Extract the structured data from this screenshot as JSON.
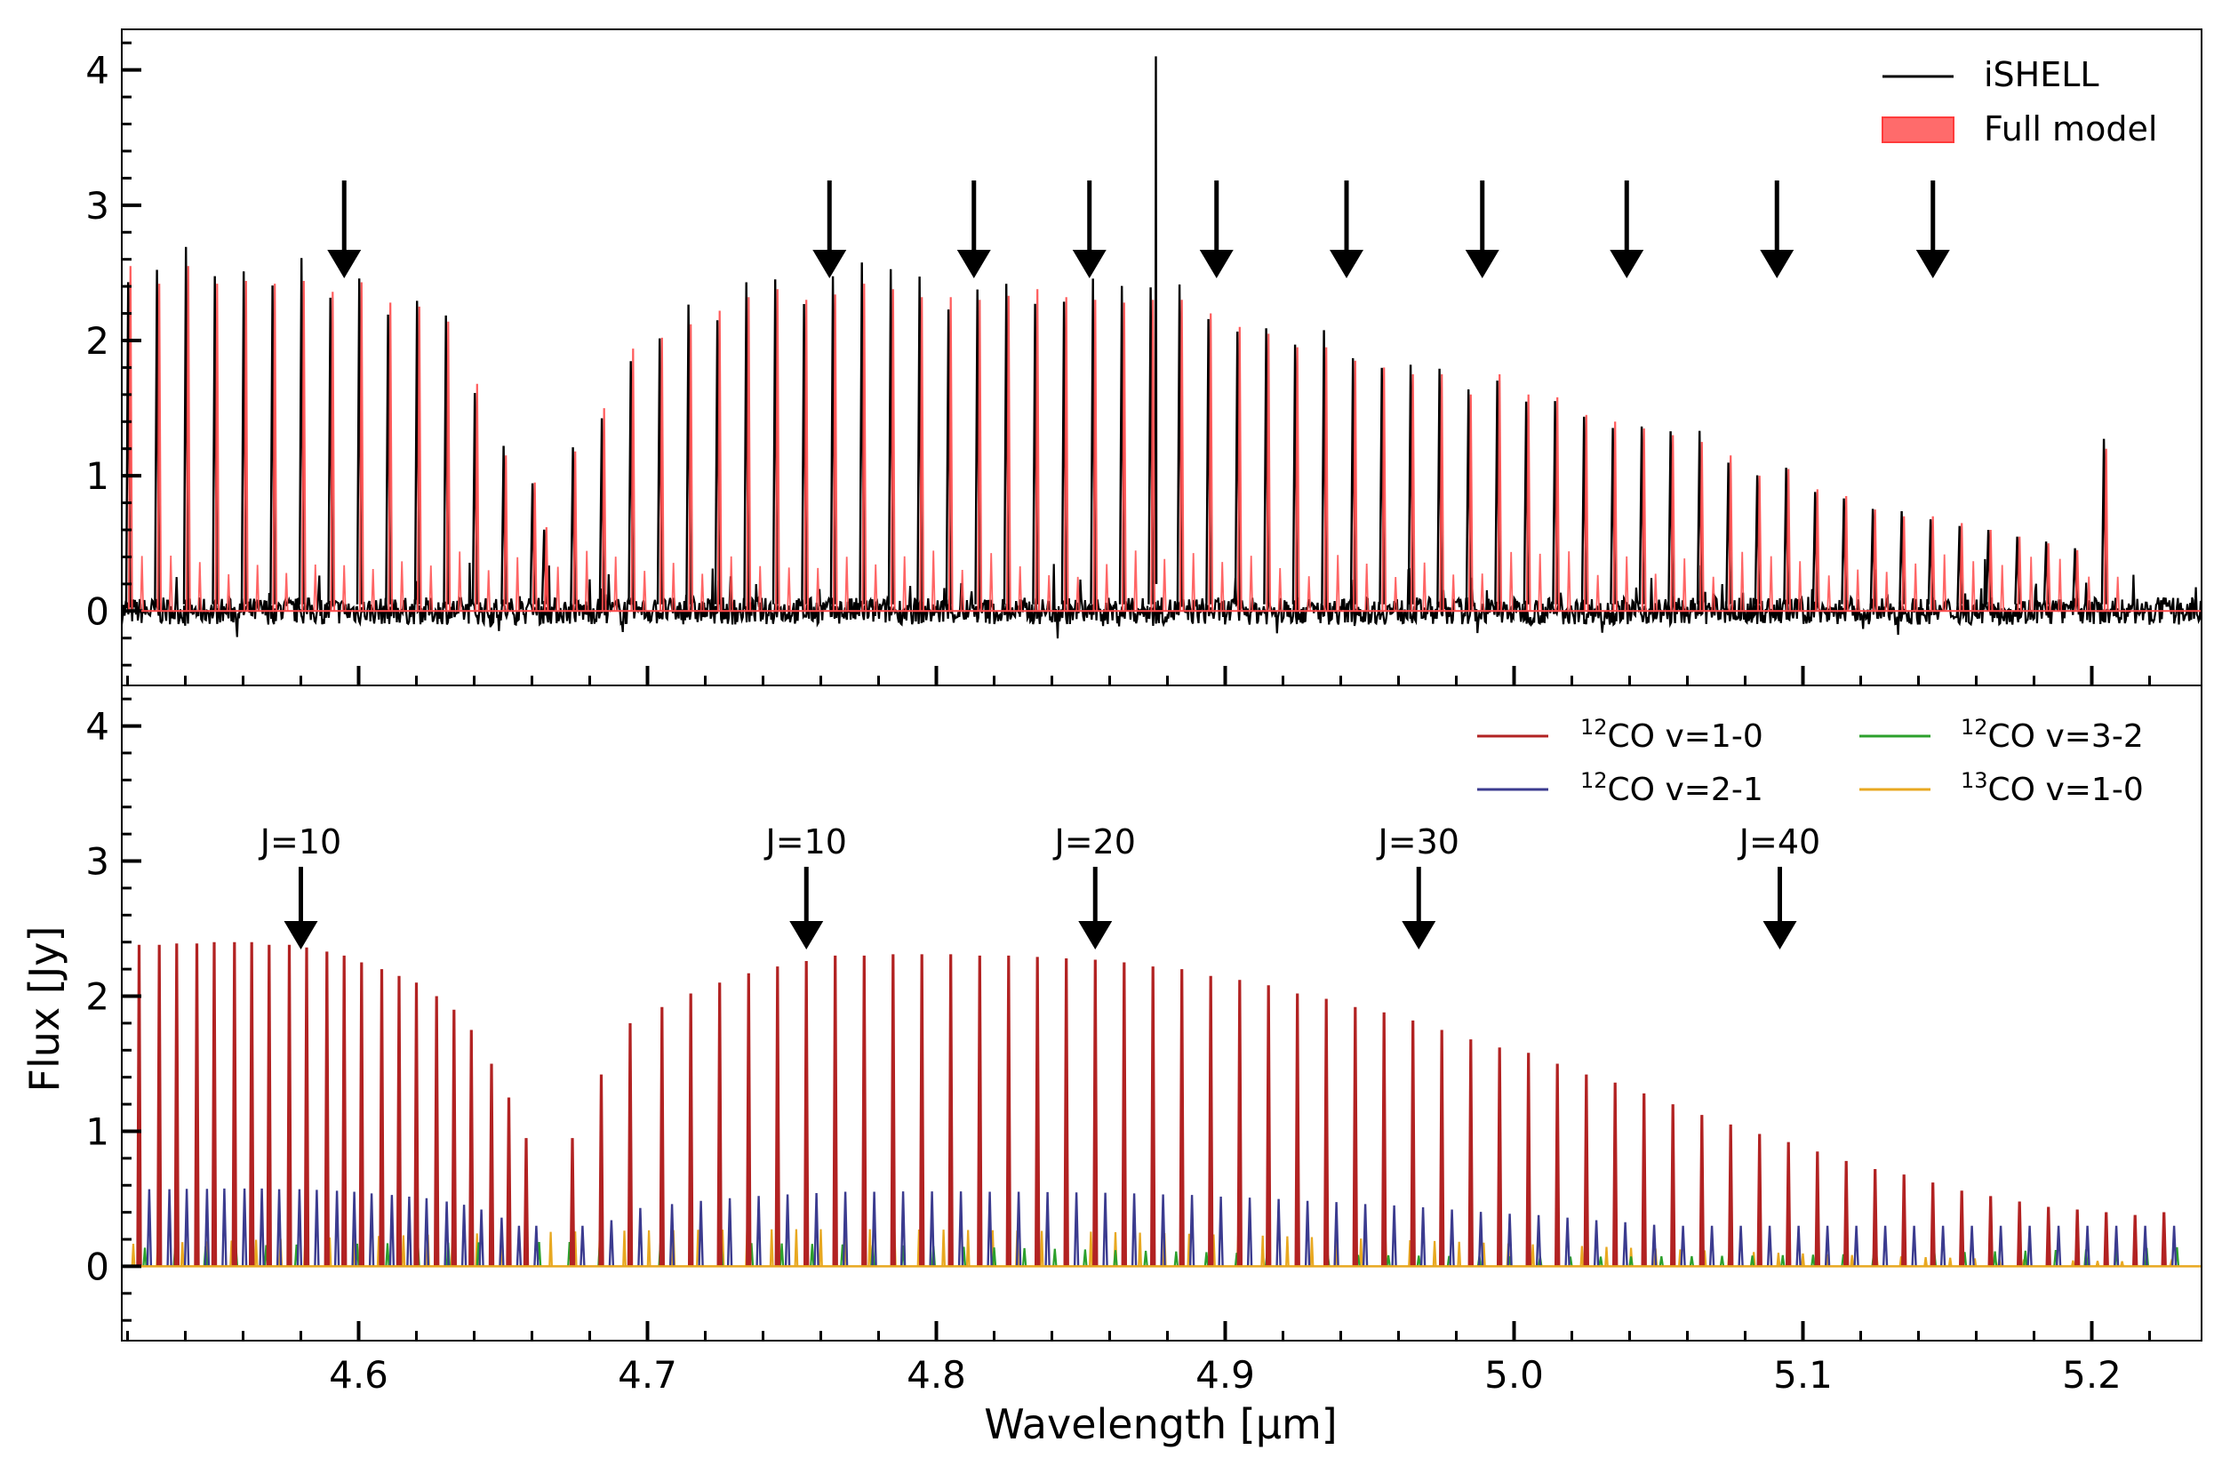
{
  "chart_data": [
    {
      "type": "line",
      "panel": "top",
      "title": "",
      "xlabel": "",
      "ylabel": "",
      "xlim": [
        4.518,
        5.238
      ],
      "ylim": [
        -0.55,
        4.3
      ],
      "x_ticks": [
        4.6,
        4.7,
        4.8,
        4.9,
        5.0,
        5.1,
        5.2
      ],
      "y_ticks": [
        0,
        1,
        2,
        3,
        4
      ],
      "y_tick_labels": [
        "0",
        "1",
        "2",
        "3",
        "4"
      ],
      "legend": {
        "placement": "top-right",
        "entries": [
          {
            "label": "iSHELL",
            "kind": "line",
            "color": "#000000"
          },
          {
            "label": "Full model",
            "kind": "patch",
            "color": "#ff5b5b"
          }
        ]
      },
      "series": [
        {
          "name": "iSHELL",
          "color": "#000000",
          "noise_amplitude": 0.1
        },
        {
          "name": "Full model",
          "color": "#ff5b5b"
        }
      ],
      "line_peaks": {
        "branch_A": [
          [
            4.521,
            2.55
          ],
          [
            4.531,
            2.42
          ],
          [
            4.541,
            2.55
          ],
          [
            4.551,
            2.42
          ],
          [
            4.561,
            2.44
          ],
          [
            4.571,
            2.42
          ],
          [
            4.581,
            2.44
          ],
          [
            4.591,
            2.36
          ],
          [
            4.601,
            2.43
          ],
          [
            4.611,
            2.28
          ],
          [
            4.621,
            2.25
          ],
          [
            4.631,
            2.14
          ],
          [
            4.641,
            1.68
          ],
          [
            4.651,
            1.15
          ],
          [
            4.661,
            0.95
          ]
        ],
        "branch_B": [
          [
            4.665,
            0.62
          ],
          [
            4.675,
            1.18
          ],
          [
            4.685,
            1.5
          ],
          [
            4.695,
            1.94
          ],
          [
            4.705,
            2.02
          ],
          [
            4.715,
            2.12
          ],
          [
            4.725,
            2.22
          ],
          [
            4.735,
            2.32
          ],
          [
            4.745,
            2.38
          ],
          [
            4.755,
            2.3
          ],
          [
            4.765,
            2.34
          ],
          [
            4.775,
            2.42
          ],
          [
            4.785,
            2.38
          ],
          [
            4.795,
            2.32
          ],
          [
            4.805,
            2.32
          ],
          [
            4.815,
            2.3
          ],
          [
            4.825,
            2.33
          ],
          [
            4.835,
            2.38
          ],
          [
            4.845,
            2.32
          ],
          [
            4.855,
            2.3
          ],
          [
            4.865,
            2.28
          ],
          [
            4.875,
            2.3
          ],
          [
            4.885,
            2.3
          ],
          [
            4.895,
            2.2
          ],
          [
            4.905,
            2.1
          ],
          [
            4.915,
            2.05
          ],
          [
            4.925,
            1.95
          ],
          [
            4.935,
            1.95
          ],
          [
            4.945,
            1.85
          ],
          [
            4.955,
            1.8
          ],
          [
            4.965,
            1.75
          ],
          [
            4.975,
            1.75
          ],
          [
            4.985,
            1.6
          ],
          [
            4.995,
            1.75
          ],
          [
            5.005,
            1.6
          ],
          [
            5.015,
            1.58
          ],
          [
            5.025,
            1.45
          ],
          [
            5.035,
            1.4
          ],
          [
            5.045,
            1.35
          ],
          [
            5.055,
            1.3
          ],
          [
            5.065,
            1.25
          ],
          [
            5.075,
            1.15
          ],
          [
            5.085,
            1.0
          ],
          [
            5.095,
            1.05
          ],
          [
            5.105,
            0.9
          ],
          [
            5.115,
            0.85
          ],
          [
            5.125,
            0.75
          ],
          [
            5.135,
            0.7
          ],
          [
            5.145,
            0.7
          ],
          [
            5.155,
            0.65
          ],
          [
            5.165,
            0.6
          ],
          [
            5.175,
            0.55
          ],
          [
            5.185,
            0.5
          ],
          [
            5.195,
            0.45
          ],
          [
            5.205,
            1.2
          ]
        ],
        "tall_spike": [
          [
            4.876,
            4.1
          ]
        ]
      },
      "arrows_at": [
        4.595,
        4.763,
        4.813,
        4.853,
        4.897,
        4.942,
        4.989,
        5.039,
        5.091,
        5.145
      ]
    },
    {
      "type": "line",
      "panel": "bottom",
      "title": "",
      "xlabel": "Wavelength [μm]",
      "ylabel": "Flux [Jy]",
      "xlim": [
        4.518,
        5.238
      ],
      "ylim": [
        -0.55,
        4.3
      ],
      "x_ticks": [
        4.6,
        4.7,
        4.8,
        4.9,
        5.0,
        5.1,
        5.2
      ],
      "x_tick_labels": [
        "4.6",
        "4.7",
        "4.8",
        "4.9",
        "5.0",
        "5.1",
        "5.2"
      ],
      "y_ticks": [
        0,
        1,
        2,
        3,
        4
      ],
      "y_tick_labels": [
        "0",
        "1",
        "2",
        "3",
        "4"
      ],
      "legend": {
        "placement": "top-right",
        "entries": [
          {
            "sup": "12",
            "label": "CO v=1-0",
            "color": "#b22222"
          },
          {
            "sup": "12",
            "label": "CO v=2-1",
            "color": "#3b3b8f"
          },
          {
            "sup": "12",
            "label": "CO v=3-2",
            "color": "#2ca02c"
          },
          {
            "sup": "13",
            "label": "CO v=1-0",
            "color": "#e8a820"
          }
        ]
      },
      "series": [
        {
          "name": "12CO v=1-0",
          "color": "#b22222"
        },
        {
          "name": "12CO v=2-1",
          "color": "#3b3b8f"
        },
        {
          "name": "12CO v=3-2",
          "color": "#2ca02c"
        },
        {
          "name": "13CO v=1-0",
          "color": "#e8a820"
        }
      ],
      "line_peaks": {
        "co12_10_branch_A": [
          [
            4.524,
            2.38
          ],
          [
            4.531,
            2.38
          ],
          [
            4.537,
            2.39
          ],
          [
            4.544,
            2.39
          ],
          [
            4.55,
            2.4
          ],
          [
            4.557,
            2.4
          ],
          [
            4.563,
            2.4
          ],
          [
            4.569,
            2.38
          ],
          [
            4.576,
            2.38
          ],
          [
            4.582,
            2.36
          ],
          [
            4.589,
            2.33
          ],
          [
            4.595,
            2.3
          ],
          [
            4.601,
            2.25
          ],
          [
            4.608,
            2.2
          ],
          [
            4.614,
            2.15
          ],
          [
            4.62,
            2.1
          ],
          [
            4.627,
            2.0
          ],
          [
            4.633,
            1.9
          ],
          [
            4.639,
            1.75
          ],
          [
            4.646,
            1.5
          ],
          [
            4.652,
            1.25
          ],
          [
            4.658,
            0.95
          ]
        ],
        "co12_10_branch_B": [
          [
            4.674,
            0.95
          ],
          [
            4.684,
            1.42
          ],
          [
            4.694,
            1.8
          ],
          [
            4.705,
            1.92
          ],
          [
            4.715,
            2.02
          ],
          [
            4.725,
            2.1
          ],
          [
            4.735,
            2.17
          ],
          [
            4.745,
            2.22
          ],
          [
            4.755,
            2.26
          ],
          [
            4.765,
            2.3
          ],
          [
            4.775,
            2.3
          ],
          [
            4.785,
            2.31
          ],
          [
            4.795,
            2.31
          ],
          [
            4.805,
            2.31
          ],
          [
            4.815,
            2.3
          ],
          [
            4.825,
            2.3
          ],
          [
            4.835,
            2.29
          ],
          [
            4.845,
            2.28
          ],
          [
            4.855,
            2.27
          ],
          [
            4.865,
            2.25
          ],
          [
            4.875,
            2.22
          ],
          [
            4.885,
            2.2
          ],
          [
            4.895,
            2.15
          ],
          [
            4.905,
            2.12
          ],
          [
            4.915,
            2.08
          ],
          [
            4.925,
            2.02
          ],
          [
            4.935,
            1.98
          ],
          [
            4.945,
            1.92
          ],
          [
            4.955,
            1.88
          ],
          [
            4.965,
            1.82
          ],
          [
            4.975,
            1.75
          ],
          [
            4.985,
            1.68
          ],
          [
            4.995,
            1.62
          ],
          [
            5.005,
            1.58
          ],
          [
            5.015,
            1.5
          ],
          [
            5.025,
            1.42
          ],
          [
            5.035,
            1.36
          ],
          [
            5.045,
            1.28
          ],
          [
            5.055,
            1.2
          ],
          [
            5.065,
            1.12
          ],
          [
            5.075,
            1.05
          ],
          [
            5.085,
            0.98
          ],
          [
            5.095,
            0.92
          ],
          [
            5.105,
            0.85
          ],
          [
            5.115,
            0.78
          ],
          [
            5.125,
            0.72
          ],
          [
            5.135,
            0.68
          ],
          [
            5.145,
            0.62
          ],
          [
            5.155,
            0.56
          ],
          [
            5.165,
            0.52
          ],
          [
            5.175,
            0.48
          ],
          [
            5.185,
            0.44
          ],
          [
            5.195,
            0.42
          ],
          [
            5.205,
            0.4
          ],
          [
            5.215,
            0.38
          ],
          [
            5.225,
            0.4
          ]
        ],
        "co12_21_peak": 0.58,
        "co12_32_peak": 0.18,
        "co13_10_peak": 0.25
      },
      "annotations": [
        {
          "text": "J=10",
          "x": 4.58
        },
        {
          "text": "J=10",
          "x": 4.755
        },
        {
          "text": "J=20",
          "x": 4.855
        },
        {
          "text": "J=30",
          "x": 4.967
        },
        {
          "text": "J=40",
          "x": 5.092
        }
      ]
    }
  ]
}
